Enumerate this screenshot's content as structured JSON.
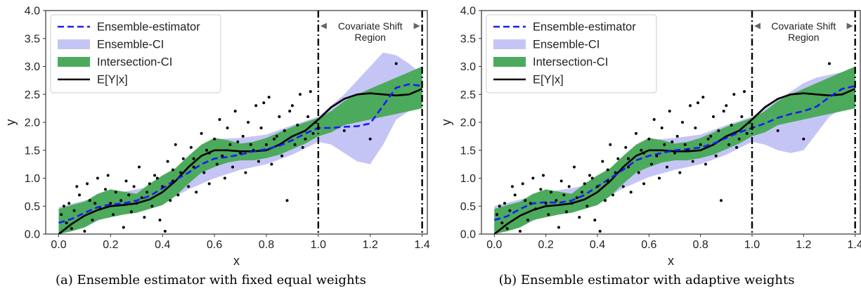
{
  "figure": {
    "subplots": [
      {
        "caption": "(a) Ensemble estimator with fixed equal weights"
      },
      {
        "caption": "(b) Ensemble estimator with adaptive weights"
      }
    ]
  },
  "chart_data": [
    {
      "type": "line",
      "title": "",
      "xlabel": "x",
      "ylabel": "y",
      "xlim": [
        -0.05,
        1.42
      ],
      "ylim": [
        0.0,
        4.0
      ],
      "xticks": [
        0.0,
        0.2,
        0.4,
        0.6,
        0.8,
        1.0,
        1.2,
        1.4
      ],
      "xtick_labels": [
        "0.0",
        "0.2",
        "0.4",
        "0.6",
        "0.8",
        "1.0",
        "1.2",
        "1.4"
      ],
      "yticks": [
        0.0,
        0.5,
        1.0,
        1.5,
        2.0,
        2.5,
        3.0,
        3.5,
        4.0
      ],
      "ytick_labels": [
        "0.0",
        "0.5",
        "1.0",
        "1.5",
        "2.0",
        "2.5",
        "3.0",
        "3.5",
        "4.0"
      ],
      "grid": false,
      "legend_position": "top-left",
      "legend": [
        "Ensemble-estimator",
        "Ensemble-CI",
        "Intersection-CI",
        "E[Y|x]"
      ],
      "annotation": {
        "lines": [
          "Covariate Shift",
          "Region"
        ],
        "x_from": 1.0,
        "x_to": 1.4
      },
      "vlines": [
        1.0,
        1.4
      ],
      "colors": {
        "estimator": "#1a1aff",
        "ensemble_ci": "#c5c5f5",
        "intersection_ci": "#4caa5c",
        "truth": "#000000",
        "points": "#000000"
      },
      "truth": {
        "x": [
          0.0,
          0.05,
          0.1,
          0.15,
          0.2,
          0.25,
          0.3,
          0.35,
          0.4,
          0.45,
          0.5,
          0.55,
          0.6,
          0.65,
          0.7,
          0.75,
          0.8,
          0.85,
          0.9,
          0.95,
          1.0,
          1.05,
          1.1,
          1.15,
          1.2,
          1.25,
          1.3,
          1.35,
          1.4
        ],
        "y": [
          0.0,
          0.18,
          0.33,
          0.43,
          0.5,
          0.52,
          0.55,
          0.62,
          0.75,
          0.95,
          1.2,
          1.4,
          1.5,
          1.5,
          1.48,
          1.48,
          1.5,
          1.6,
          1.75,
          1.85,
          2.05,
          2.27,
          2.42,
          2.5,
          2.52,
          2.5,
          2.48,
          2.5,
          2.6
        ]
      },
      "estimator": {
        "x": [
          0.0,
          0.05,
          0.1,
          0.15,
          0.2,
          0.25,
          0.3,
          0.35,
          0.4,
          0.45,
          0.5,
          0.55,
          0.6,
          0.65,
          0.7,
          0.75,
          0.8,
          0.85,
          0.9,
          0.95,
          1.0,
          1.05,
          1.1,
          1.15,
          1.2,
          1.25,
          1.3,
          1.35,
          1.4
        ],
        "y": [
          0.2,
          0.27,
          0.38,
          0.48,
          0.53,
          0.55,
          0.6,
          0.68,
          0.82,
          0.97,
          1.1,
          1.25,
          1.35,
          1.38,
          1.42,
          1.48,
          1.52,
          1.58,
          1.68,
          1.8,
          1.9,
          1.9,
          1.92,
          1.93,
          1.98,
          2.3,
          2.62,
          2.68,
          2.65
        ]
      },
      "ensemble_ci": {
        "x": [
          0.0,
          0.1,
          0.2,
          0.3,
          0.4,
          0.5,
          0.6,
          0.7,
          0.8,
          0.9,
          1.0,
          1.05,
          1.1,
          1.15,
          1.2,
          1.25,
          1.3,
          1.35,
          1.4
        ],
        "upper": [
          0.48,
          0.6,
          0.72,
          0.8,
          0.9,
          1.35,
          1.7,
          1.72,
          1.78,
          1.95,
          2.1,
          2.3,
          2.5,
          2.75,
          3.0,
          3.25,
          3.2,
          3.05,
          2.85
        ],
        "lower": [
          0.0,
          0.12,
          0.35,
          0.4,
          0.55,
          0.8,
          1.0,
          1.15,
          1.25,
          1.42,
          1.65,
          1.6,
          1.45,
          1.3,
          1.25,
          1.6,
          2.05,
          2.2,
          2.3
        ]
      },
      "intersection_ci": {
        "x": [
          0.0,
          0.05,
          0.1,
          0.15,
          0.2,
          0.25,
          0.3,
          0.35,
          0.4,
          0.45,
          0.5,
          0.55,
          0.6,
          0.65,
          0.7,
          0.75,
          0.8,
          0.85,
          0.9,
          0.95,
          1.0,
          1.05,
          1.1,
          1.15,
          1.2,
          1.25,
          1.3,
          1.35,
          1.4
        ],
        "upper": [
          0.45,
          0.52,
          0.58,
          0.72,
          0.8,
          0.76,
          0.72,
          0.9,
          1.05,
          1.18,
          1.4,
          1.6,
          1.72,
          1.68,
          1.62,
          1.65,
          1.72,
          1.82,
          1.92,
          2.0,
          2.08,
          2.2,
          2.38,
          2.5,
          2.6,
          2.7,
          2.8,
          2.9,
          3.0
        ],
        "lower": [
          0.0,
          0.05,
          0.12,
          0.25,
          0.3,
          0.35,
          0.38,
          0.45,
          0.52,
          0.68,
          0.9,
          1.1,
          1.2,
          1.28,
          1.32,
          1.32,
          1.36,
          1.42,
          1.52,
          1.62,
          1.75,
          1.82,
          1.95,
          2.0,
          2.05,
          2.1,
          2.15,
          2.2,
          2.25
        ]
      },
      "scatter": {
        "x": [
          0.01,
          0.02,
          0.03,
          0.04,
          0.05,
          0.06,
          0.08,
          0.1,
          0.11,
          0.12,
          0.13,
          0.15,
          0.16,
          0.18,
          0.19,
          0.2,
          0.21,
          0.22,
          0.24,
          0.25,
          0.26,
          0.28,
          0.29,
          0.3,
          0.31,
          0.33,
          0.34,
          0.35,
          0.36,
          0.38,
          0.39,
          0.4,
          0.41,
          0.42,
          0.43,
          0.44,
          0.45,
          0.46,
          0.47,
          0.48,
          0.5,
          0.51,
          0.52,
          0.53,
          0.55,
          0.56,
          0.57,
          0.58,
          0.6,
          0.61,
          0.62,
          0.63,
          0.64,
          0.65,
          0.66,
          0.67,
          0.68,
          0.7,
          0.71,
          0.72,
          0.73,
          0.75,
          0.76,
          0.77,
          0.78,
          0.8,
          0.81,
          0.82,
          0.83,
          0.85,
          0.86,
          0.87,
          0.88,
          0.9,
          0.91,
          0.92,
          0.93,
          0.95,
          0.96,
          0.97,
          0.98,
          0.99,
          1.0,
          1.1,
          1.2,
          1.3,
          0.14,
          0.27,
          0.44,
          0.58,
          0.74,
          0.84,
          0.94,
          0.37,
          0.52,
          0.69,
          0.79,
          0.89,
          0.07,
          0.32
        ],
        "y": [
          0.35,
          0.5,
          0.2,
          0.55,
          0.1,
          0.42,
          0.7,
          0.05,
          0.9,
          0.6,
          0.25,
          1.0,
          0.45,
          0.8,
          1.05,
          0.55,
          0.35,
          0.75,
          0.6,
          0.12,
          0.95,
          0.4,
          0.85,
          0.55,
          1.2,
          0.3,
          0.75,
          0.9,
          0.5,
          1.0,
          0.25,
          0.85,
          0.05,
          1.3,
          0.6,
          0.95,
          1.6,
          0.7,
          1.1,
          1.35,
          0.85,
          1.55,
          1.2,
          0.75,
          1.8,
          1.1,
          1.5,
          0.9,
          1.7,
          1.25,
          2.05,
          1.4,
          1.0,
          1.9,
          1.6,
          1.2,
          2.2,
          1.45,
          1.75,
          1.1,
          2.0,
          1.5,
          2.3,
          1.3,
          1.9,
          1.6,
          2.45,
          1.25,
          1.7,
          2.1,
          1.4,
          1.85,
          0.6,
          2.3,
          1.6,
          1.95,
          2.5,
          1.7,
          2.1,
          2.55,
          1.8,
          2.0,
          1.9,
          1.85,
          1.7,
          3.05,
          0.55,
          0.7,
          1.15,
          1.45,
          1.6,
          1.75,
          1.55,
          1.05,
          1.35,
          1.65,
          2.35,
          2.2,
          0.85,
          0.65
        ]
      }
    },
    {
      "type": "line",
      "title": "",
      "xlabel": "x",
      "ylabel": "y",
      "xlim": [
        -0.05,
        1.42
      ],
      "ylim": [
        0.0,
        4.0
      ],
      "xticks": [
        0.0,
        0.2,
        0.4,
        0.6,
        0.8,
        1.0,
        1.2,
        1.4
      ],
      "xtick_labels": [
        "0.0",
        "0.2",
        "0.4",
        "0.6",
        "0.8",
        "1.0",
        "1.2",
        "1.4"
      ],
      "yticks": [
        0.0,
        0.5,
        1.0,
        1.5,
        2.0,
        2.5,
        3.0,
        3.5,
        4.0
      ],
      "ytick_labels": [
        "0.0",
        "0.5",
        "1.0",
        "1.5",
        "2.0",
        "2.5",
        "3.0",
        "3.5",
        "4.0"
      ],
      "grid": false,
      "legend_position": "top-left",
      "legend": [
        "Ensemble-estimator",
        "Ensemble-CI",
        "Intersection-CI",
        "E[Y|x]"
      ],
      "annotation": {
        "lines": [
          "Covariate Shift",
          "Region"
        ],
        "x_from": 1.0,
        "x_to": 1.4
      },
      "vlines": [
        1.0,
        1.4
      ],
      "colors": {
        "estimator": "#1a1aff",
        "ensemble_ci": "#c5c5f5",
        "intersection_ci": "#4caa5c",
        "truth": "#000000",
        "points": "#000000"
      },
      "truth": {
        "x": [
          0.0,
          0.05,
          0.1,
          0.15,
          0.2,
          0.25,
          0.3,
          0.35,
          0.4,
          0.45,
          0.5,
          0.55,
          0.6,
          0.65,
          0.7,
          0.75,
          0.8,
          0.85,
          0.9,
          0.95,
          1.0,
          1.05,
          1.1,
          1.15,
          1.2,
          1.25,
          1.3,
          1.35,
          1.4
        ],
        "y": [
          0.0,
          0.18,
          0.33,
          0.43,
          0.5,
          0.52,
          0.55,
          0.62,
          0.75,
          0.95,
          1.2,
          1.4,
          1.5,
          1.5,
          1.48,
          1.48,
          1.5,
          1.6,
          1.75,
          1.85,
          2.05,
          2.27,
          2.42,
          2.5,
          2.52,
          2.5,
          2.48,
          2.5,
          2.6
        ]
      },
      "estimator": {
        "x": [
          0.0,
          0.05,
          0.1,
          0.15,
          0.2,
          0.25,
          0.3,
          0.35,
          0.4,
          0.45,
          0.5,
          0.55,
          0.6,
          0.65,
          0.7,
          0.75,
          0.8,
          0.85,
          0.9,
          0.95,
          1.0,
          1.05,
          1.1,
          1.15,
          1.2,
          1.25,
          1.3,
          1.35,
          1.4
        ],
        "y": [
          0.25,
          0.32,
          0.45,
          0.55,
          0.57,
          0.56,
          0.6,
          0.7,
          0.85,
          1.0,
          1.15,
          1.32,
          1.4,
          1.45,
          1.5,
          1.52,
          1.55,
          1.62,
          1.72,
          1.82,
          1.9,
          1.98,
          2.08,
          2.15,
          2.2,
          2.28,
          2.45,
          2.6,
          2.65
        ]
      },
      "ensemble_ci": {
        "x": [
          0.0,
          0.1,
          0.2,
          0.3,
          0.4,
          0.5,
          0.6,
          0.7,
          0.8,
          0.9,
          1.0,
          1.05,
          1.1,
          1.15,
          1.2,
          1.25,
          1.3,
          1.35,
          1.4
        ],
        "upper": [
          0.5,
          0.62,
          0.75,
          0.82,
          0.92,
          1.3,
          1.68,
          1.72,
          1.78,
          1.95,
          2.1,
          2.25,
          2.4,
          2.55,
          2.7,
          2.8,
          2.85,
          2.9,
          2.95
        ],
        "lower": [
          0.0,
          0.12,
          0.35,
          0.42,
          0.55,
          0.82,
          1.02,
          1.15,
          1.25,
          1.42,
          1.65,
          1.6,
          1.5,
          1.45,
          1.5,
          1.8,
          2.1,
          2.25,
          2.3
        ]
      },
      "intersection_ci": {
        "x": [
          0.0,
          0.05,
          0.1,
          0.15,
          0.2,
          0.25,
          0.3,
          0.35,
          0.4,
          0.45,
          0.5,
          0.55,
          0.6,
          0.65,
          0.7,
          0.75,
          0.8,
          0.85,
          0.9,
          0.95,
          1.0,
          1.05,
          1.1,
          1.15,
          1.2,
          1.25,
          1.3,
          1.35,
          1.4
        ],
        "upper": [
          0.45,
          0.52,
          0.58,
          0.72,
          0.8,
          0.76,
          0.72,
          0.9,
          1.05,
          1.18,
          1.4,
          1.6,
          1.72,
          1.68,
          1.62,
          1.65,
          1.72,
          1.82,
          1.92,
          2.0,
          2.08,
          2.2,
          2.38,
          2.5,
          2.6,
          2.7,
          2.8,
          2.9,
          3.0
        ],
        "lower": [
          0.0,
          0.05,
          0.12,
          0.25,
          0.3,
          0.35,
          0.38,
          0.45,
          0.52,
          0.68,
          0.9,
          1.1,
          1.2,
          1.28,
          1.32,
          1.32,
          1.36,
          1.42,
          1.52,
          1.62,
          1.75,
          1.82,
          1.95,
          2.0,
          2.05,
          2.1,
          2.15,
          2.2,
          2.25
        ]
      },
      "scatter": {
        "x": [
          0.01,
          0.02,
          0.03,
          0.04,
          0.05,
          0.06,
          0.08,
          0.1,
          0.11,
          0.12,
          0.13,
          0.15,
          0.16,
          0.18,
          0.19,
          0.2,
          0.21,
          0.22,
          0.24,
          0.25,
          0.26,
          0.28,
          0.29,
          0.3,
          0.31,
          0.33,
          0.34,
          0.35,
          0.36,
          0.38,
          0.39,
          0.4,
          0.41,
          0.42,
          0.43,
          0.44,
          0.45,
          0.46,
          0.47,
          0.48,
          0.5,
          0.51,
          0.52,
          0.53,
          0.55,
          0.56,
          0.57,
          0.58,
          0.6,
          0.61,
          0.62,
          0.63,
          0.64,
          0.65,
          0.66,
          0.67,
          0.68,
          0.7,
          0.71,
          0.72,
          0.73,
          0.75,
          0.76,
          0.77,
          0.78,
          0.8,
          0.81,
          0.82,
          0.83,
          0.85,
          0.86,
          0.87,
          0.88,
          0.9,
          0.91,
          0.92,
          0.93,
          0.95,
          0.96,
          0.97,
          0.98,
          0.99,
          1.0,
          1.1,
          1.2,
          1.3,
          0.14,
          0.27,
          0.44,
          0.58,
          0.74,
          0.84,
          0.94,
          0.37,
          0.52,
          0.69,
          0.79,
          0.89,
          0.07,
          0.32
        ],
        "y": [
          0.35,
          0.5,
          0.2,
          0.55,
          0.1,
          0.42,
          0.7,
          0.05,
          0.9,
          0.6,
          0.25,
          1.0,
          0.45,
          0.8,
          1.05,
          0.55,
          0.35,
          0.75,
          0.6,
          0.12,
          0.95,
          0.4,
          0.85,
          0.55,
          1.2,
          0.3,
          0.75,
          0.9,
          0.5,
          1.0,
          0.25,
          0.85,
          0.05,
          1.3,
          0.6,
          0.95,
          1.6,
          0.7,
          1.1,
          1.35,
          0.85,
          1.55,
          1.2,
          0.75,
          1.8,
          1.1,
          1.5,
          0.9,
          1.7,
          1.25,
          2.05,
          1.4,
          1.0,
          1.9,
          1.6,
          1.2,
          2.2,
          1.45,
          1.75,
          1.1,
          2.0,
          1.5,
          2.3,
          1.3,
          1.9,
          1.6,
          2.45,
          1.25,
          1.7,
          2.1,
          1.4,
          1.85,
          0.6,
          2.3,
          1.6,
          1.95,
          2.5,
          1.7,
          2.1,
          2.55,
          1.8,
          2.0,
          1.9,
          1.85,
          1.7,
          3.05,
          0.55,
          0.7,
          1.15,
          1.45,
          1.6,
          1.75,
          1.55,
          1.05,
          1.35,
          1.65,
          2.35,
          2.2,
          0.85,
          0.65
        ]
      }
    }
  ]
}
